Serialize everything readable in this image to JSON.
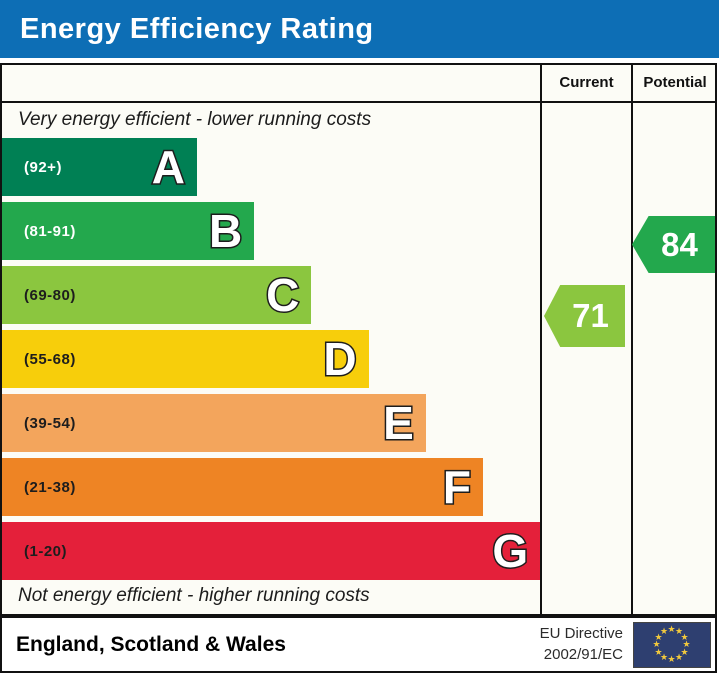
{
  "header": {
    "title": "Energy Efficiency Rating",
    "bg_color": "#0d6eb5"
  },
  "columns": {
    "current_label": "Current",
    "potential_label": "Potential"
  },
  "captions": {
    "top": "Very energy efficient - lower running costs",
    "bottom": "Not energy efficient - higher running costs"
  },
  "chart_data": {
    "type": "bar",
    "title": "Energy Efficiency Rating",
    "bands": [
      {
        "letter": "A",
        "range": "(92+)",
        "min": 92,
        "max": 100,
        "color": "#008054",
        "range_text_color": "#ffffff"
      },
      {
        "letter": "B",
        "range": "(81-91)",
        "min": 81,
        "max": 91,
        "color": "#23a84d",
        "range_text_color": "#ffffff"
      },
      {
        "letter": "C",
        "range": "(69-80)",
        "min": 69,
        "max": 80,
        "color": "#8bc63f",
        "range_text_color": "#1d1d1d"
      },
      {
        "letter": "D",
        "range": "(55-68)",
        "min": 55,
        "max": 68,
        "color": "#f7ce0b",
        "range_text_color": "#1d1d1d"
      },
      {
        "letter": "E",
        "range": "(39-54)",
        "min": 39,
        "max": 54,
        "color": "#f3a55c",
        "range_text_color": "#1d1d1d"
      },
      {
        "letter": "F",
        "range": "(21-38)",
        "min": 21,
        "max": 38,
        "color": "#ee8424",
        "range_text_color": "#1d1d1d"
      },
      {
        "letter": "G",
        "range": "(1-20)",
        "min": 1,
        "max": 20,
        "color": "#e4203a",
        "range_text_color": "#1d1d1d"
      }
    ],
    "current": {
      "value": 71,
      "band": "C",
      "color": "#8bc63f"
    },
    "potential": {
      "value": 84,
      "band": "B",
      "color": "#23a84d"
    }
  },
  "footer": {
    "region": "England, Scotland & Wales",
    "directive_line1": "EU Directive",
    "directive_line2": "2002/91/EC",
    "flag_bg": "#2e3f70",
    "star_color": "#f2c93d"
  }
}
